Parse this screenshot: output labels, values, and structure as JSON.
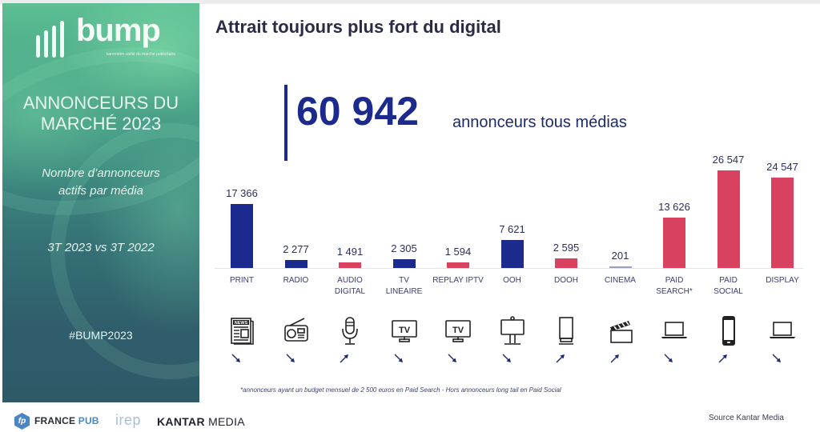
{
  "left_panel": {
    "logo": {
      "word": "bump",
      "subtitle": "baromètre unifié du marché publicitaire"
    },
    "title_line1": "ANNONCEURS DU",
    "title_line2": "MARCHÉ 2023",
    "subtitle_line1": "Nombre d’annonceurs",
    "subtitle_line2": "actifs par média",
    "period": "3T 2023 vs 3T 2022",
    "hashtag": "#BUMP2023"
  },
  "footer": {
    "partners": [
      {
        "name": "FRANCE PUB",
        "part1": "FRANCE ",
        "part2": "PUB",
        "badge": "fp"
      },
      {
        "name": "irep"
      },
      {
        "name": "KANTAR MEDIA",
        "part1": "KANTAR ",
        "part2": "MEDIA"
      }
    ],
    "source": "Source Kantar Media",
    "footnote": "*annonceurs ayant un budget mensuel de 2 500 euros en Paid Search - Hors annonceurs long tail en Paid Social"
  },
  "header": {
    "title": "Attrait toujours plus fort du digital"
  },
  "kpi": {
    "value": "60 942",
    "label": "annonceurs tous médias"
  },
  "colors": {
    "traditional": "#1b2a8c",
    "digital": "#d8415f",
    "accent_text": "#1b2a8c"
  },
  "chart_data": {
    "type": "bar",
    "title": "Attrait toujours plus fort du digital",
    "subtitle": "Nombre d’annonceurs actifs par média — 3T 2023 vs 3T 2022",
    "xlabel": "",
    "ylabel": "",
    "grid": false,
    "categories": [
      "PRINT",
      "RADIO",
      "AUDIO DIGITAL",
      "TV LINEAIRE",
      "REPLAY IPTV",
      "OOH",
      "DOOH",
      "CINEMA",
      "PAID SEARCH*",
      "PAID SOCIAL",
      "DISPLAY"
    ],
    "values": [
      17366,
      2277,
      1491,
      2305,
      1594,
      7621,
      2595,
      201,
      13626,
      26547,
      24547
    ],
    "value_labels": [
      "17 366",
      "2 277",
      "1 491",
      "2 305",
      "1 594",
      "7 621",
      "2 595",
      "201",
      "13 626",
      "26 547",
      "24 547"
    ],
    "label_lines": [
      [
        "PRINT"
      ],
      [
        "RADIO"
      ],
      [
        "AUDIO",
        "DIGITAL"
      ],
      [
        "TV",
        "LINEAIRE"
      ],
      [
        "REPLAY IPTV"
      ],
      [
        "OOH"
      ],
      [
        "DOOH"
      ],
      [
        "CINEMA"
      ],
      [
        "PAID",
        "SEARCH*"
      ],
      [
        "PAID",
        "SOCIAL"
      ],
      [
        "DISPLAY"
      ]
    ],
    "bar_colors": [
      "#1b2a8c",
      "#1b2a8c",
      "#d8415f",
      "#1b2a8c",
      "#d8415f",
      "#1b2a8c",
      "#d8415f",
      "#9aa0b8",
      "#d8415f",
      "#d8415f",
      "#d8415f"
    ],
    "icons": [
      "newspaper-icon",
      "radio-icon",
      "microphone-icon",
      "tv-icon",
      "tv-icon",
      "billboard-icon",
      "digital-panel-icon",
      "clapperboard-icon",
      "laptop-icon",
      "smartphone-icon",
      "laptop-icon"
    ],
    "trend_vs_3T2022": [
      "down",
      "down",
      "up",
      "down",
      "down",
      "down",
      "up",
      "up",
      "down",
      "up",
      "down"
    ],
    "total": 60942,
    "ylim": [
      0,
      27000
    ]
  }
}
